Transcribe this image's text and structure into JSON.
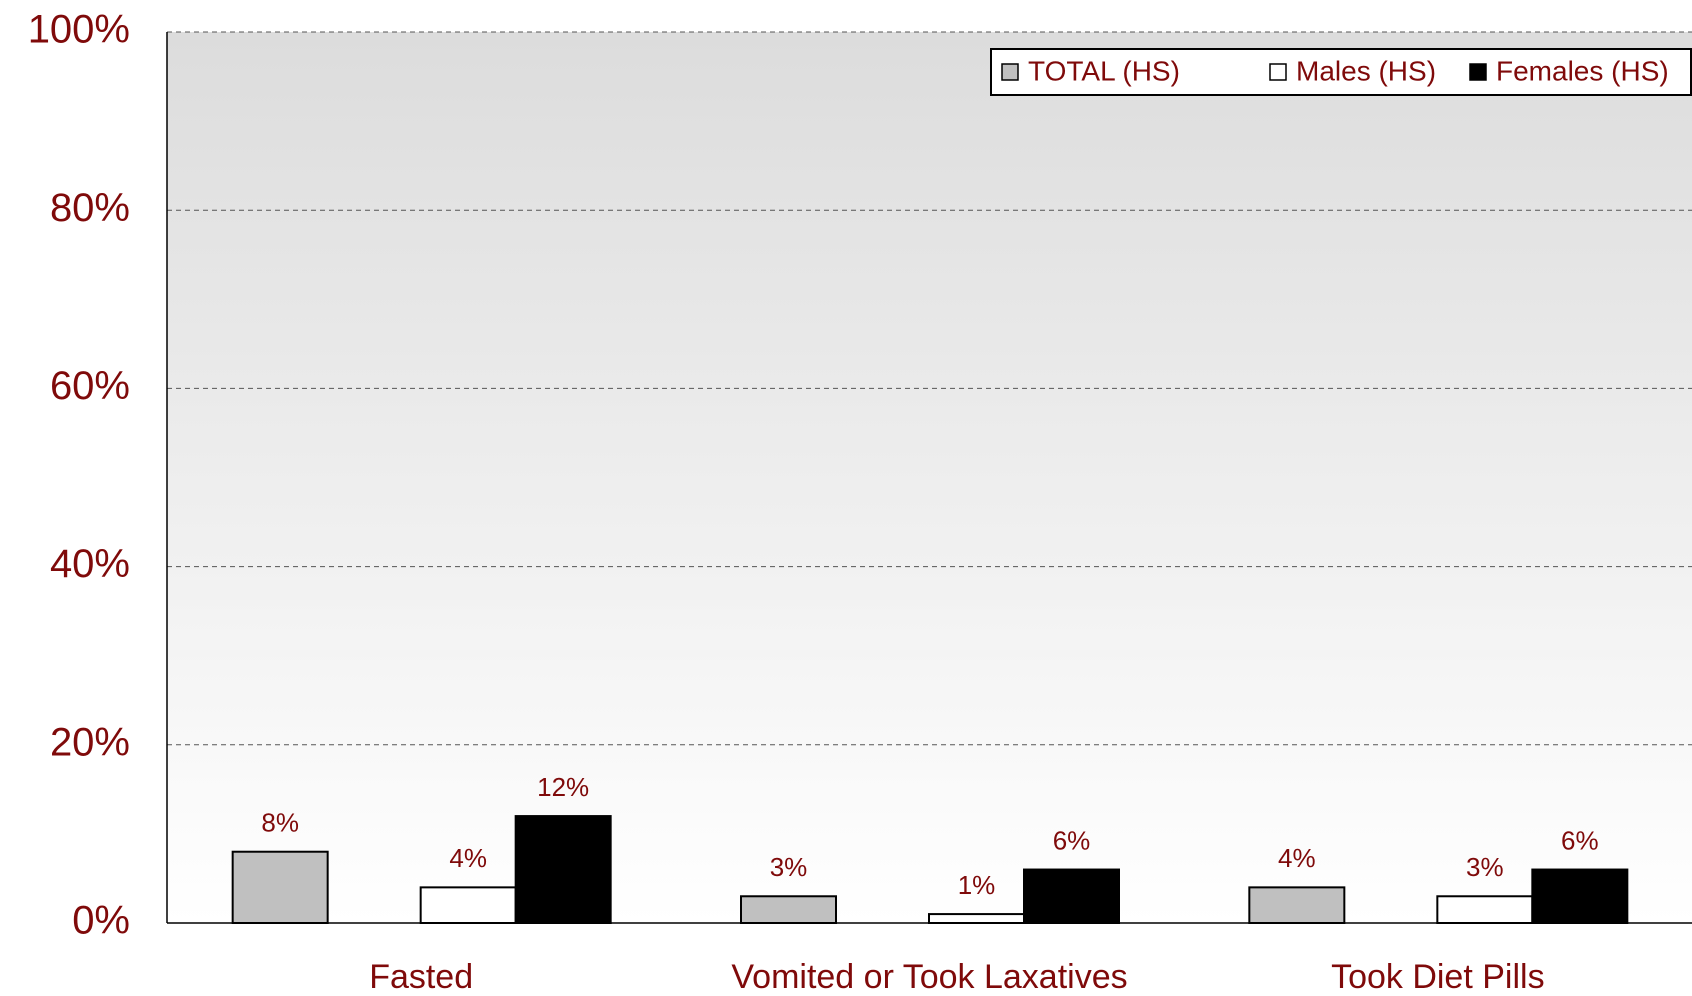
{
  "chart_data": {
    "type": "bar",
    "categories": [
      "Fasted",
      "Vomited or Took Laxatives",
      "Took Diet Pills"
    ],
    "series": [
      {
        "name": "TOTAL (HS)",
        "color": "#c0c0c0",
        "values": [
          8,
          3,
          4
        ],
        "value_labels": [
          "8%",
          "3%",
          "4%"
        ]
      },
      {
        "name": "Males (HS)",
        "color": "#ffffff",
        "values": [
          4,
          1,
          3
        ],
        "value_labels": [
          "4%",
          "1%",
          "3%"
        ]
      },
      {
        "name": "Females (HS)",
        "color": "#000000",
        "values": [
          12,
          6,
          6
        ],
        "value_labels": [
          "12%",
          "6%",
          "6%"
        ]
      }
    ],
    "ylim": [
      0,
      100
    ],
    "yticks": [
      {
        "value": 0,
        "label": "0%"
      },
      {
        "value": 20,
        "label": "20%"
      },
      {
        "value": 40,
        "label": "40%"
      },
      {
        "value": 60,
        "label": "60%"
      },
      {
        "value": 80,
        "label": "80%"
      },
      {
        "value": 100,
        "label": "100%"
      }
    ],
    "grid": true,
    "legend": "top-right"
  }
}
